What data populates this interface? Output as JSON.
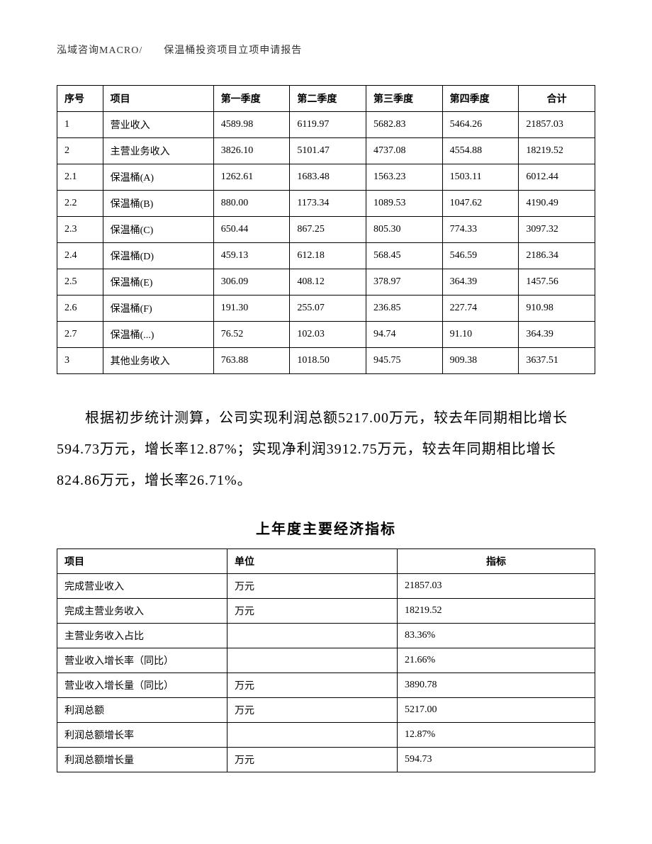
{
  "header": "泓域咨询MACRO/　　保温桶投资项目立项申请报告",
  "table1": {
    "headers": {
      "seq": "序号",
      "item": "项目",
      "q1": "第一季度",
      "q2": "第二季度",
      "q3": "第三季度",
      "q4": "第四季度",
      "total": "合计"
    },
    "rows": [
      {
        "seq": "1",
        "item": "营业收入",
        "q1": "4589.98",
        "q2": "6119.97",
        "q3": "5682.83",
        "q4": "5464.26",
        "total": "21857.03"
      },
      {
        "seq": "2",
        "item": "主营业务收入",
        "q1": "3826.10",
        "q2": "5101.47",
        "q3": "4737.08",
        "q4": "4554.88",
        "total": "18219.52"
      },
      {
        "seq": "2.1",
        "item": "保温桶(A)",
        "q1": "1262.61",
        "q2": "1683.48",
        "q3": "1563.23",
        "q4": "1503.11",
        "total": "6012.44"
      },
      {
        "seq": "2.2",
        "item": "保温桶(B)",
        "q1": "880.00",
        "q2": "1173.34",
        "q3": "1089.53",
        "q4": "1047.62",
        "total": "4190.49"
      },
      {
        "seq": "2.3",
        "item": "保温桶(C)",
        "q1": "650.44",
        "q2": "867.25",
        "q3": "805.30",
        "q4": "774.33",
        "total": "3097.32"
      },
      {
        "seq": "2.4",
        "item": "保温桶(D)",
        "q1": "459.13",
        "q2": "612.18",
        "q3": "568.45",
        "q4": "546.59",
        "total": "2186.34"
      },
      {
        "seq": "2.5",
        "item": "保温桶(E)",
        "q1": "306.09",
        "q2": "408.12",
        "q3": "378.97",
        "q4": "364.39",
        "total": "1457.56"
      },
      {
        "seq": "2.6",
        "item": "保温桶(F)",
        "q1": "191.30",
        "q2": "255.07",
        "q3": "236.85",
        "q4": "227.74",
        "total": "910.98"
      },
      {
        "seq": "2.7",
        "item": "保温桶(...)",
        "q1": "76.52",
        "q2": "102.03",
        "q3": "94.74",
        "q4": "91.10",
        "total": "364.39"
      },
      {
        "seq": "3",
        "item": "其他业务收入",
        "q1": "763.88",
        "q2": "1018.50",
        "q3": "945.75",
        "q4": "909.38",
        "total": "3637.51"
      }
    ]
  },
  "paragraph": "根据初步统计测算，公司实现利润总额5217.00万元，较去年同期相比增长594.73万元，增长率12.87%；实现净利润3912.75万元，较去年同期相比增长824.86万元，增长率26.71%。",
  "sub_title": "上年度主要经济指标",
  "table2": {
    "headers": {
      "item": "项目",
      "unit": "单位",
      "val": "指标"
    },
    "rows": [
      {
        "item": "完成营业收入",
        "unit": "万元",
        "val": "21857.03"
      },
      {
        "item": "完成主营业务收入",
        "unit": "万元",
        "val": "18219.52"
      },
      {
        "item": "主营业务收入占比",
        "unit": "",
        "val": "83.36%"
      },
      {
        "item": "营业收入增长率（同比）",
        "unit": "",
        "val": "21.66%"
      },
      {
        "item": "营业收入增长量（同比）",
        "unit": "万元",
        "val": "3890.78"
      },
      {
        "item": "利润总额",
        "unit": "万元",
        "val": "5217.00"
      },
      {
        "item": "利润总额增长率",
        "unit": "",
        "val": "12.87%"
      },
      {
        "item": "利润总额增长量",
        "unit": "万元",
        "val": "594.73"
      }
    ]
  }
}
